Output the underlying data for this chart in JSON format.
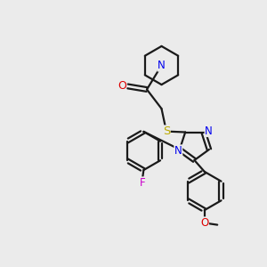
{
  "bg_color": "#ebebeb",
  "line_color": "#1a1a1a",
  "bond_lw": 1.6,
  "atom_colors": {
    "N": "#0000ee",
    "O": "#dd0000",
    "S": "#bbaa00",
    "F": "#cc00cc",
    "C": "#1a1a1a"
  },
  "font_size_atom": 8.5
}
